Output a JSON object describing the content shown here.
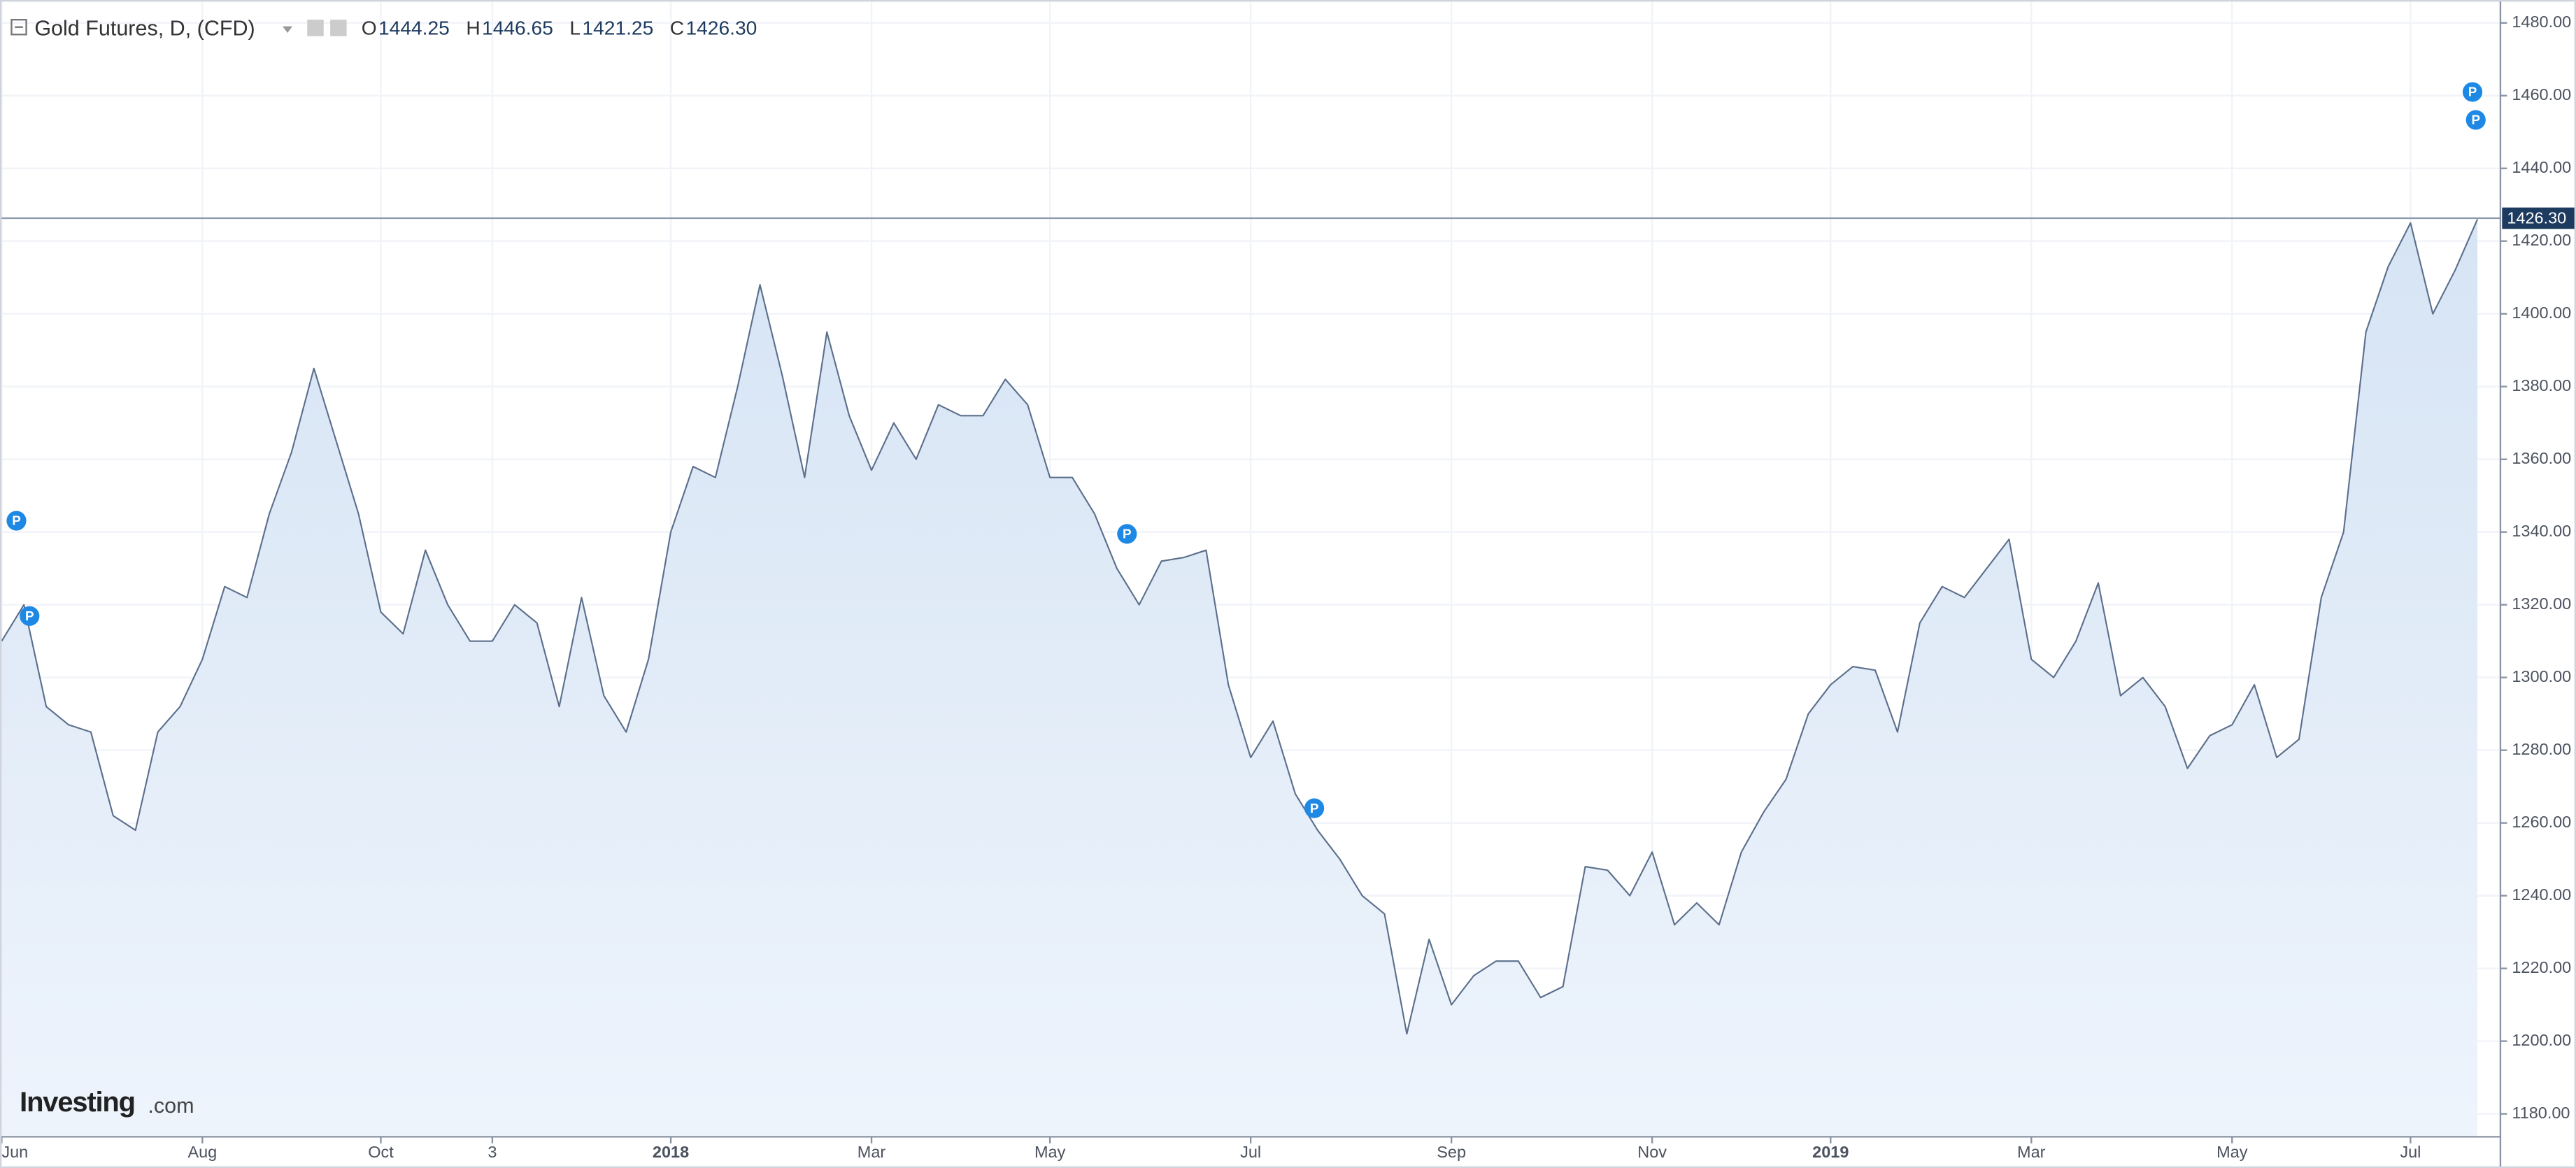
{
  "chart_data": {
    "type": "area",
    "title": "Gold Futures, D, (CFD)",
    "ohlc": [
      {
        "name": "O",
        "value": "1444.25"
      },
      {
        "name": "H",
        "value": "1446.65"
      },
      {
        "name": "L",
        "value": "1421.25"
      },
      {
        "name": "C",
        "value": "1426.30"
      }
    ],
    "watermark": [
      "Investing",
      ".com"
    ],
    "event_marker_label": "P",
    "categories": [
      "Jun",
      null,
      null,
      null,
      null,
      null,
      null,
      null,
      null,
      "Aug",
      null,
      null,
      null,
      null,
      null,
      null,
      null,
      "Oct",
      null,
      null,
      null,
      null,
      "3",
      null,
      null,
      null,
      null,
      null,
      null,
      null,
      "2018",
      null,
      null,
      null,
      null,
      null,
      null,
      null,
      null,
      "Mar",
      null,
      null,
      null,
      null,
      null,
      null,
      null,
      "May",
      null,
      null,
      null,
      null,
      null,
      null,
      null,
      null,
      "Jul",
      null,
      null,
      null,
      null,
      null,
      null,
      null,
      null,
      "Sep",
      null,
      null,
      null,
      null,
      null,
      null,
      null,
      null,
      "Nov",
      null,
      null,
      null,
      null,
      null,
      null,
      null,
      "2019",
      null,
      null,
      null,
      null,
      null,
      null,
      null,
      null,
      "Mar",
      null,
      null,
      null,
      null,
      null,
      null,
      null,
      null,
      "May",
      null,
      null,
      null,
      null,
      null,
      null,
      null,
      "Jul",
      null,
      null,
      null
    ],
    "series": [
      {
        "name": "Gold Futures",
        "color": "#5b6f8c",
        "fill": "#dce8f6",
        "values": [
          1310,
          1320,
          1292,
          1287,
          1285,
          1262,
          1258,
          1285,
          1292,
          1305,
          1325,
          1322,
          1345,
          1362,
          1385,
          1365,
          1345,
          1318,
          1312,
          1335,
          1320,
          1310,
          1310,
          1320,
          1315,
          1292,
          1322,
          1295,
          1285,
          1305,
          1340,
          1358,
          1355,
          1380,
          1408,
          1383,
          1355,
          1395,
          1372,
          1357,
          1370,
          1360,
          1375,
          1372,
          1372,
          1382,
          1375,
          1355,
          1355,
          1345,
          1330,
          1320,
          1332,
          1333,
          1335,
          1298,
          1278,
          1288,
          1268,
          1258,
          1250,
          1240,
          1235,
          1202,
          1228,
          1210,
          1218,
          1222,
          1222,
          1212,
          1215,
          1248,
          1247,
          1240,
          1252,
          1232,
          1238,
          1232,
          1252,
          1263,
          1272,
          1290,
          1298,
          1303,
          1302,
          1285,
          1315,
          1325,
          1322,
          1330,
          1338,
          1305,
          1300,
          1310,
          1326,
          1295,
          1300,
          1292,
          1275,
          1284,
          1287,
          1298,
          1278,
          1283,
          1322,
          1340,
          1395,
          1413,
          1425,
          1400,
          1412,
          1426
        ]
      }
    ],
    "last_price": {
      "value": 1426.3,
      "label": "1426.30",
      "color": "#1d3a5f"
    },
    "ylim": [
      1173.7,
      1486.3
    ],
    "yticks": [
      {
        "value": 1180,
        "label": "1180.00"
      },
      {
        "value": 1200,
        "label": "1200.00"
      },
      {
        "value": 1220,
        "label": "1220.00"
      },
      {
        "value": 1240,
        "label": "1240.00"
      },
      {
        "value": 1260,
        "label": "1260.00"
      },
      {
        "value": 1280,
        "label": "1280.00"
      },
      {
        "value": 1300,
        "label": "1300.00"
      },
      {
        "value": 1320,
        "label": "1320.00"
      },
      {
        "value": 1340,
        "label": "1340.00"
      },
      {
        "value": 1360,
        "label": "1360.00"
      },
      {
        "value": 1380,
        "label": "1380.00"
      },
      {
        "value": 1400,
        "label": "1400.00"
      },
      {
        "value": 1420,
        "label": "1420.00"
      },
      {
        "value": 1440,
        "label": "1440.00"
      },
      {
        "value": 1460,
        "label": "1460.00"
      },
      {
        "value": 1480,
        "label": "1480.00"
      }
    ],
    "grid": true
  }
}
